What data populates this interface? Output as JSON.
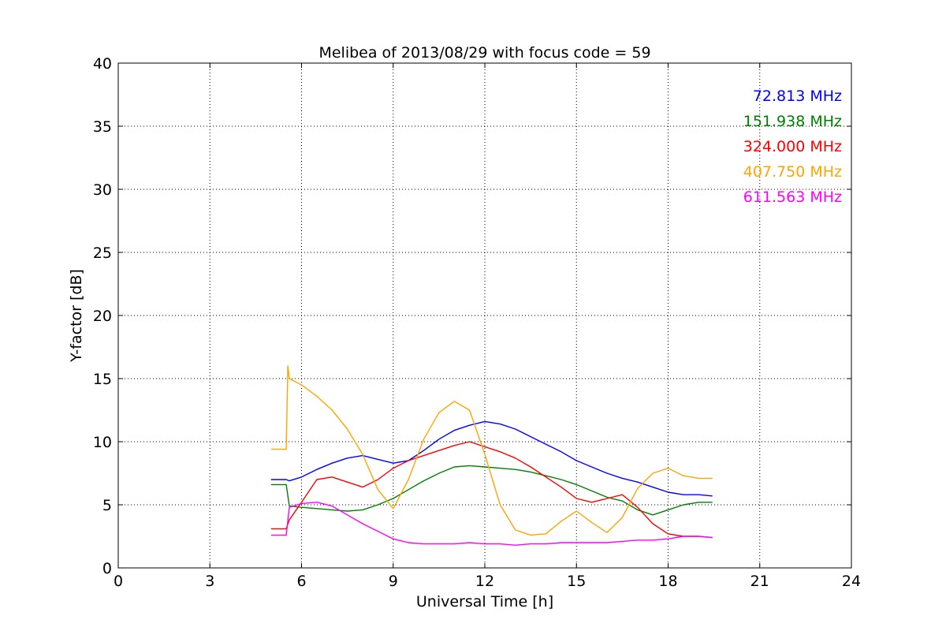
{
  "chart_data": {
    "type": "line",
    "title": "Melibea of 2013/08/29 with focus code = 59",
    "xlabel": "Universal Time [h]",
    "ylabel": "Y-factor [dB]",
    "xlim": [
      0,
      24
    ],
    "ylim": [
      0,
      40
    ],
    "xticks": [
      0,
      3,
      6,
      9,
      12,
      15,
      18,
      21,
      24
    ],
    "yticks": [
      0,
      5,
      10,
      15,
      20,
      25,
      30,
      35,
      40
    ],
    "grid": true,
    "legend_position": "top-right",
    "series": [
      {
        "name": "72.813 MHz",
        "color": "#0000ff",
        "x": [
          5.0,
          5.5,
          5.6,
          6.0,
          6.5,
          7.0,
          7.5,
          8.0,
          8.5,
          9.0,
          9.5,
          10.0,
          10.5,
          11.0,
          11.5,
          12.0,
          12.5,
          13.0,
          13.5,
          14.0,
          14.5,
          15.0,
          15.5,
          16.0,
          16.5,
          17.0,
          17.5,
          18.0,
          18.5,
          19.0,
          19.45
        ],
        "y": [
          7.0,
          7.0,
          6.9,
          7.2,
          7.8,
          8.3,
          8.7,
          8.9,
          8.6,
          8.3,
          8.5,
          9.3,
          10.2,
          10.9,
          11.3,
          11.6,
          11.4,
          11.0,
          10.4,
          9.8,
          9.2,
          8.5,
          8.0,
          7.5,
          7.1,
          6.8,
          6.4,
          6.0,
          5.8,
          5.8,
          5.7
        ]
      },
      {
        "name": "151.938 MHz",
        "color": "#008000",
        "x": [
          5.0,
          5.5,
          5.6,
          6.0,
          6.5,
          7.0,
          7.5,
          8.0,
          8.5,
          9.0,
          9.5,
          10.0,
          10.5,
          11.0,
          11.5,
          12.0,
          12.5,
          13.0,
          13.5,
          14.0,
          14.5,
          15.0,
          15.5,
          16.0,
          16.5,
          17.0,
          17.5,
          18.0,
          18.5,
          19.0,
          19.45
        ],
        "y": [
          6.6,
          6.6,
          4.9,
          4.8,
          4.7,
          4.6,
          4.5,
          4.6,
          5.0,
          5.5,
          6.2,
          6.9,
          7.5,
          8.0,
          8.1,
          8.0,
          7.9,
          7.8,
          7.6,
          7.3,
          7.0,
          6.6,
          6.1,
          5.6,
          5.3,
          4.6,
          4.2,
          4.6,
          5.0,
          5.2,
          5.2
        ]
      },
      {
        "name": "324.000 MHz",
        "color": "#ff0000",
        "x": [
          5.0,
          5.5,
          5.6,
          6.0,
          6.5,
          7.0,
          7.5,
          8.0,
          8.5,
          9.0,
          9.5,
          10.0,
          10.5,
          11.0,
          11.5,
          12.0,
          12.5,
          13.0,
          13.5,
          14.0,
          14.5,
          15.0,
          15.5,
          16.0,
          16.5,
          17.0,
          17.5,
          18.0,
          18.5,
          19.0,
          19.45
        ],
        "y": [
          3.1,
          3.1,
          3.8,
          5.2,
          7.0,
          7.2,
          6.8,
          6.4,
          7.0,
          7.9,
          8.5,
          8.9,
          9.3,
          9.7,
          10.0,
          9.6,
          9.2,
          8.7,
          8.0,
          7.2,
          6.4,
          5.5,
          5.2,
          5.5,
          5.8,
          4.8,
          3.5,
          2.7,
          2.5,
          2.5,
          2.4
        ]
      },
      {
        "name": "407.750 MHz",
        "color": "#ffa500",
        "x": [
          5.0,
          5.5,
          5.55,
          5.6,
          6.0,
          6.5,
          7.0,
          7.5,
          8.0,
          8.5,
          9.0,
          9.5,
          10.0,
          10.5,
          11.0,
          11.5,
          12.0,
          12.5,
          13.0,
          13.5,
          14.0,
          14.5,
          15.0,
          15.5,
          16.0,
          16.5,
          17.0,
          17.5,
          18.0,
          18.5,
          19.0,
          19.45
        ],
        "y": [
          9.4,
          9.4,
          16.0,
          15.0,
          14.5,
          13.6,
          12.5,
          11.0,
          9.0,
          6.2,
          4.7,
          7.0,
          10.2,
          12.3,
          13.2,
          12.5,
          9.0,
          5.0,
          3.0,
          2.6,
          2.7,
          3.7,
          4.5,
          3.6,
          2.8,
          4.0,
          6.3,
          7.5,
          7.9,
          7.3,
          7.1,
          7.1
        ]
      },
      {
        "name": "611.563 MHz",
        "color": "#ff00ff",
        "x": [
          5.0,
          5.5,
          5.6,
          6.0,
          6.5,
          7.0,
          7.5,
          8.0,
          8.5,
          9.0,
          9.5,
          10.0,
          10.5,
          11.0,
          11.5,
          12.0,
          12.5,
          13.0,
          13.5,
          14.0,
          14.5,
          15.0,
          15.5,
          16.0,
          16.5,
          17.0,
          17.5,
          18.0,
          18.5,
          19.0,
          19.45
        ],
        "y": [
          2.6,
          2.6,
          4.8,
          5.1,
          5.2,
          4.9,
          4.2,
          3.5,
          2.9,
          2.3,
          2.0,
          1.9,
          1.9,
          1.9,
          2.0,
          1.9,
          1.9,
          1.8,
          1.9,
          1.9,
          2.0,
          2.0,
          2.0,
          2.0,
          2.1,
          2.2,
          2.2,
          2.3,
          2.5,
          2.5,
          2.4
        ]
      }
    ]
  }
}
